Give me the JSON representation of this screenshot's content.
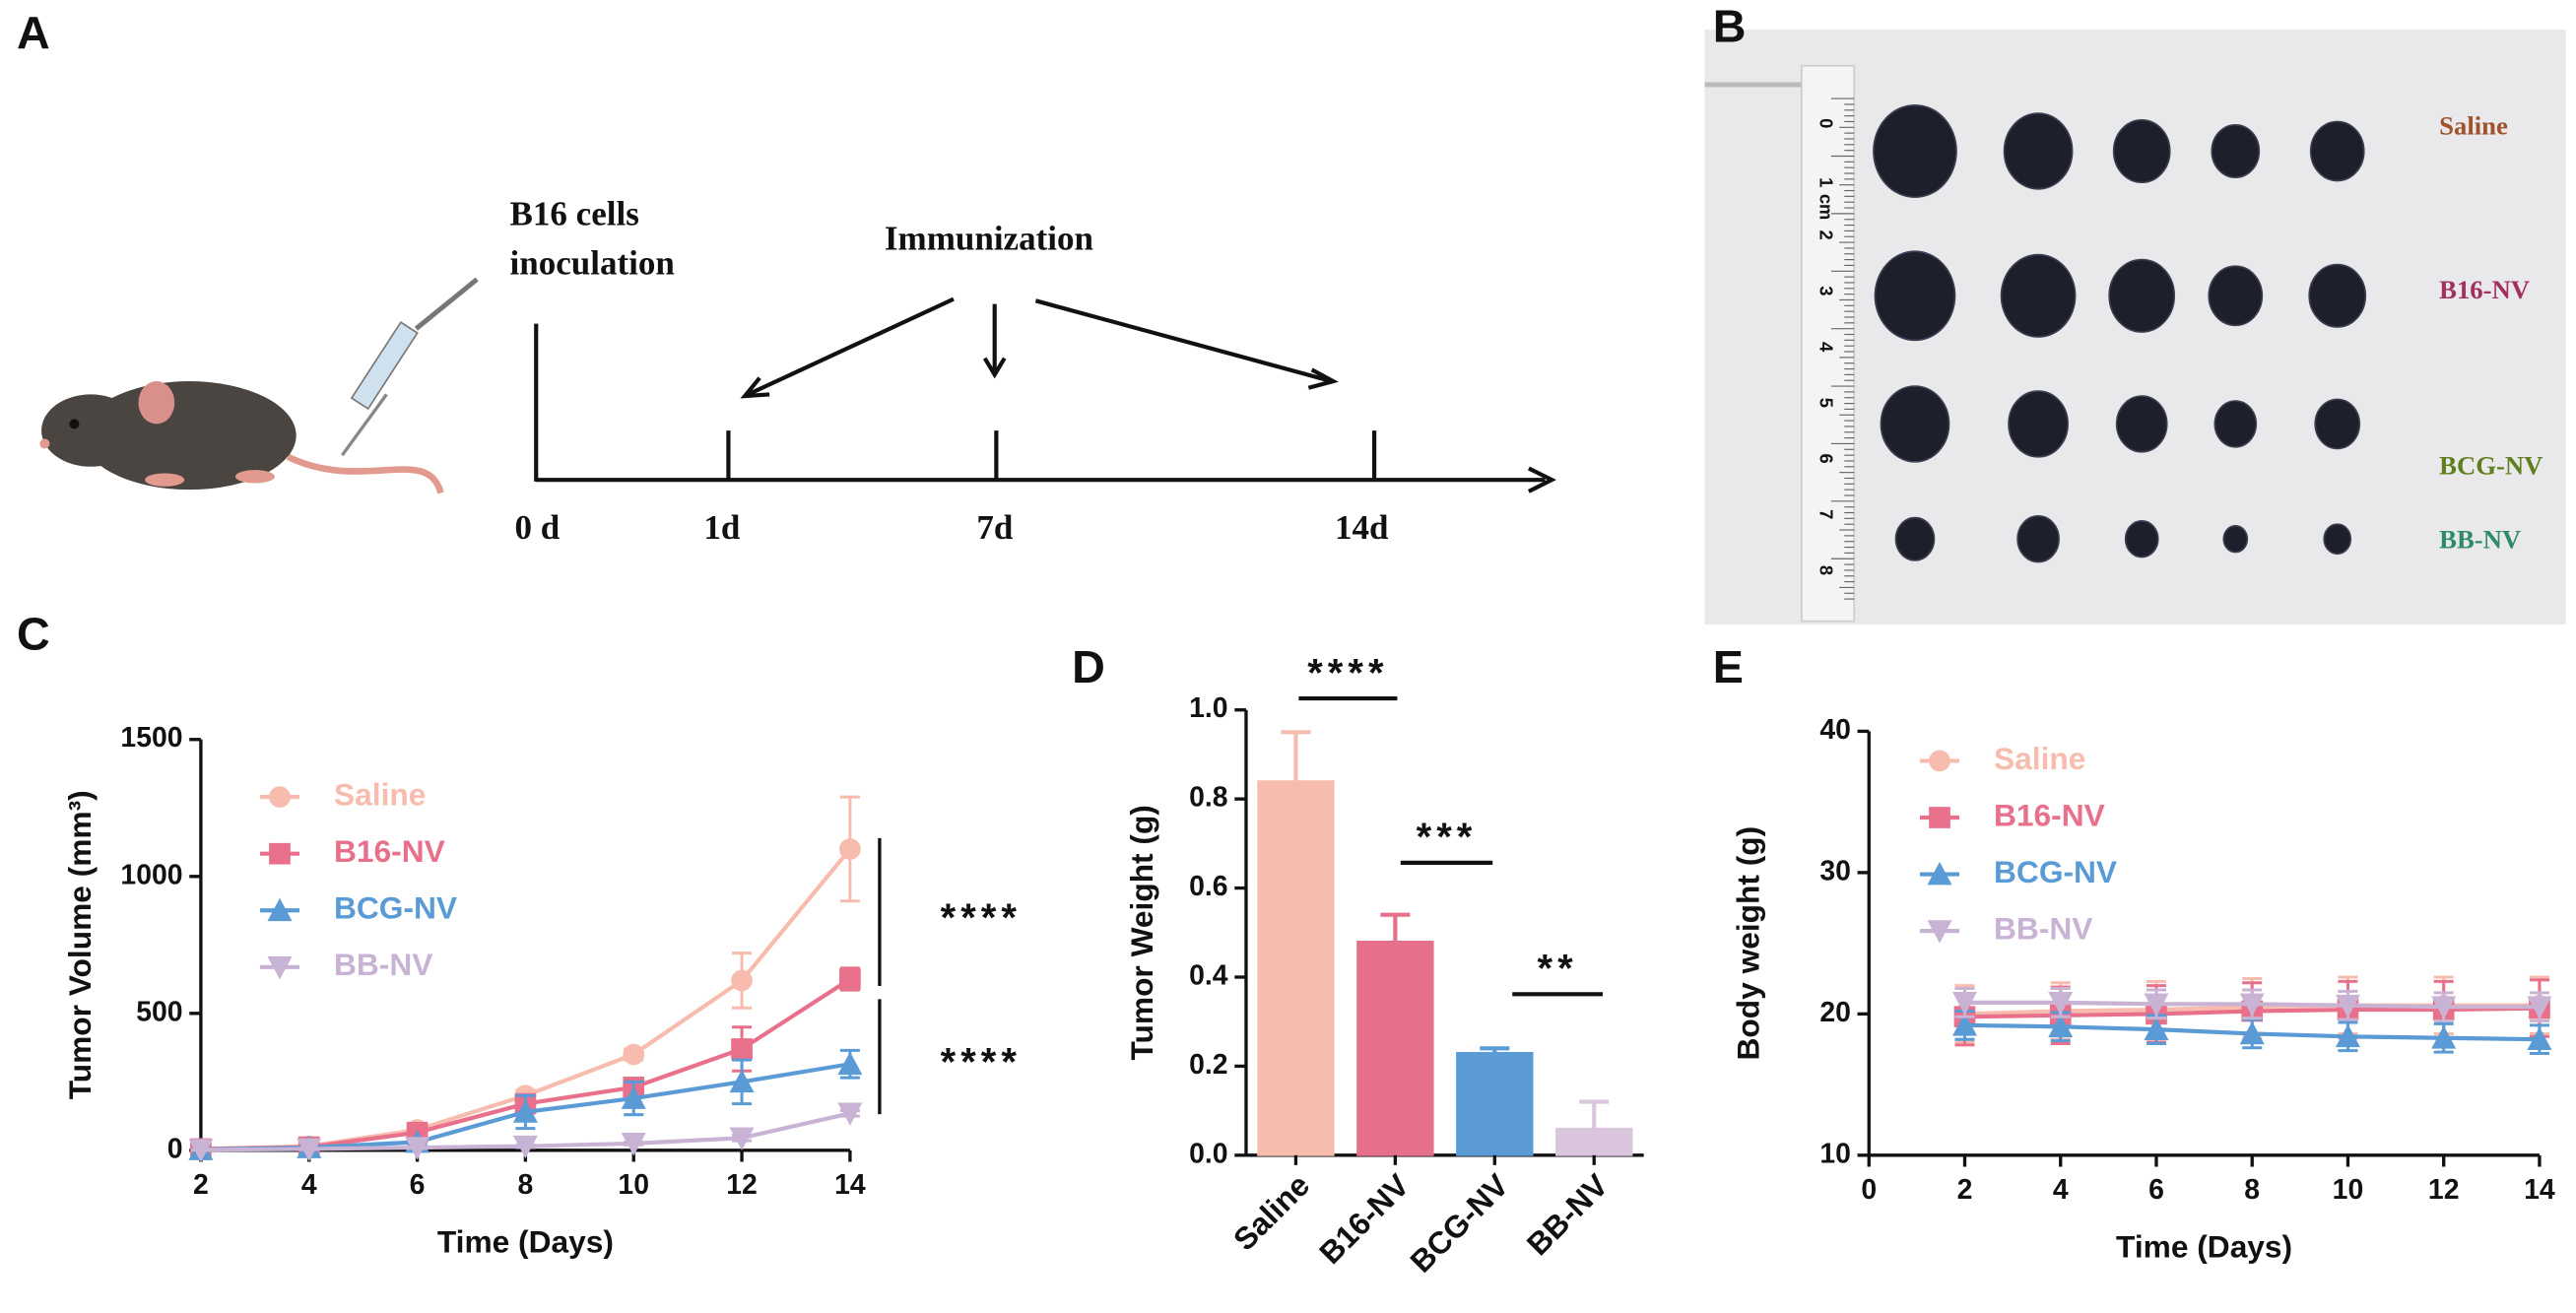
{
  "panels": [
    "A",
    "B",
    "C",
    "D",
    "E"
  ],
  "timeline": {
    "lines": [
      "B16 cells",
      "inoculation"
    ],
    "immunization": "Immunization",
    "days": [
      "0 d",
      "1d",
      "7d",
      "14d"
    ]
  },
  "photo": {
    "ruler_labels": [
      "0",
      "1",
      "cm",
      "2",
      "3",
      "4",
      "5",
      "6",
      "7",
      "8"
    ],
    "groups": [
      {
        "name": "Saline",
        "color": "#a0522d"
      },
      {
        "name": "B16-NV",
        "color": "#a3305c"
      },
      {
        "name": "BCG-NV",
        "color": "#5f7f1f"
      },
      {
        "name": "BB-NV",
        "color": "#2e8b6a"
      }
    ]
  },
  "chart_data": [
    {
      "type": "line",
      "ylabel": "Tumor Volume (mm³)",
      "xlabel": "Time (Days)",
      "x": [
        2,
        4,
        6,
        8,
        10,
        12,
        14
      ],
      "xlim": [
        2,
        14
      ],
      "xticks": [
        2,
        4,
        6,
        8,
        10,
        12,
        14
      ],
      "ylim": [
        0,
        1500
      ],
      "yticks": [
        0,
        500,
        1000,
        1500
      ],
      "series": [
        {
          "name": "Saline",
          "color": "#f7bcae",
          "marker": "circle",
          "values": [
            5,
            15,
            75,
            200,
            350,
            620,
            1100
          ],
          "errors": [
            5,
            5,
            10,
            20,
            20,
            100,
            190
          ]
        },
        {
          "name": "B16-NV",
          "color": "#e8708b",
          "marker": "square",
          "values": [
            5,
            12,
            65,
            170,
            230,
            370,
            625
          ],
          "errors": [
            3,
            5,
            10,
            30,
            30,
            80,
            40
          ]
        },
        {
          "name": "BCG-NV",
          "color": "#5a9bd5",
          "marker": "triangle",
          "values": [
            3,
            10,
            30,
            140,
            190,
            250,
            315
          ],
          "errors": [
            2,
            3,
            10,
            60,
            60,
            80,
            50
          ]
        },
        {
          "name": "BB-NV",
          "color": "#c8b3d4",
          "marker": "triangle-down",
          "values": [
            2,
            5,
            10,
            15,
            25,
            45,
            135
          ],
          "errors": [
            1,
            2,
            3,
            5,
            5,
            10,
            10
          ]
        }
      ],
      "annotations": [
        "****",
        "****"
      ]
    },
    {
      "type": "bar",
      "ylabel": "Tumor Weight (g)",
      "categories": [
        "Saline",
        "B16-NV",
        "BCG-NV",
        "BB-NV"
      ],
      "values": [
        0.84,
        0.48,
        0.23,
        0.06
      ],
      "errors": [
        0.11,
        0.06,
        0.01,
        0.06
      ],
      "colors": [
        "#f6bcae",
        "#e6708a",
        "#5b9bd5",
        "#d9c6dd"
      ],
      "ylim": [
        0,
        1.0
      ],
      "yticks": [
        {
          "value": 0,
          "label": "0.0"
        },
        0.2,
        0.4,
        0.6,
        0.8,
        {
          "value": 1,
          "label": "1.0"
        }
      ],
      "annotations": [
        "****",
        "***",
        "**"
      ]
    },
    {
      "type": "line",
      "ylabel": "Body weight (g)",
      "xlabel": "Time (Days)",
      "x": [
        2,
        4,
        6,
        8,
        10,
        12,
        14
      ],
      "xlim": [
        0,
        14
      ],
      "xticks": [
        0,
        2,
        4,
        6,
        8,
        10,
        12,
        14
      ],
      "ylim": [
        10,
        40
      ],
      "yticks": [
        10,
        20,
        30,
        40
      ],
      "series": [
        {
          "name": "Saline",
          "color": "#f7bcae",
          "marker": "circle",
          "values": [
            20,
            20.2,
            20.3,
            20.5,
            20.6,
            20.6,
            20.6
          ],
          "errors": [
            2,
            2,
            2,
            2,
            2,
            2,
            2
          ]
        },
        {
          "name": "B16-NV",
          "color": "#e8708b",
          "marker": "square",
          "values": [
            19.8,
            19.9,
            20,
            20.2,
            20.3,
            20.3,
            20.4
          ],
          "errors": [
            2,
            2,
            2,
            2,
            2,
            2,
            2
          ]
        },
        {
          "name": "BCG-NV",
          "color": "#5a9bd5",
          "marker": "triangle",
          "values": [
            19.2,
            19.1,
            18.9,
            18.6,
            18.4,
            18.3,
            18.2
          ],
          "errors": [
            1,
            1,
            1,
            1,
            1,
            1,
            1
          ]
        },
        {
          "name": "BB-NV",
          "color": "#c8b3d4",
          "marker": "triangle-down",
          "values": [
            20.8,
            20.8,
            20.7,
            20.7,
            20.6,
            20.5,
            20.5
          ],
          "errors": [
            1,
            1,
            1,
            1,
            1,
            1,
            1
          ]
        }
      ]
    }
  ]
}
